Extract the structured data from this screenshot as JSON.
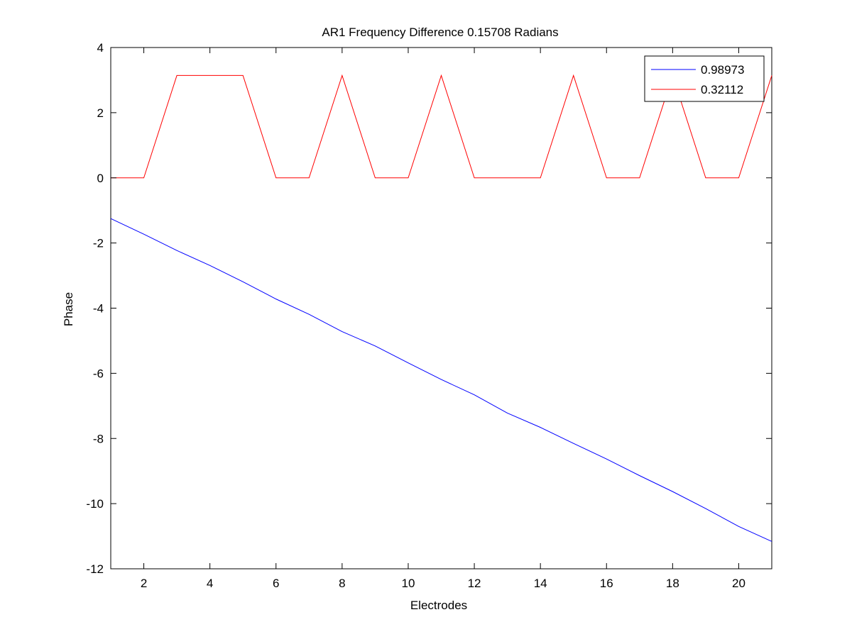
{
  "chart_data": {
    "type": "line",
    "title": "AR1 Frequency Difference 0.15708 Radians",
    "xlabel": "Electrodes",
    "ylabel": "Phase",
    "xlim": [
      1,
      21
    ],
    "ylim": [
      -12,
      4
    ],
    "xticks": [
      2,
      4,
      6,
      8,
      10,
      12,
      14,
      16,
      18,
      20
    ],
    "yticks": [
      -12,
      -10,
      -8,
      -6,
      -4,
      -2,
      0,
      2,
      4
    ],
    "grid": false,
    "legend_position": "top-right",
    "x": [
      1,
      2,
      3,
      4,
      5,
      6,
      7,
      8,
      9,
      10,
      11,
      12,
      13,
      14,
      15,
      16,
      17,
      18,
      19,
      20,
      21
    ],
    "series": [
      {
        "name": "0.98973",
        "color": "#0000ff",
        "values": [
          -1.25,
          -1.73,
          -2.23,
          -2.69,
          -3.19,
          -3.72,
          -4.19,
          -4.72,
          -5.16,
          -5.68,
          -6.19,
          -6.66,
          -7.22,
          -7.66,
          -8.15,
          -8.63,
          -9.14,
          -9.63,
          -10.15,
          -10.7,
          -11.16
        ]
      },
      {
        "name": "0.32112",
        "color": "#ff0000",
        "values": [
          0,
          0,
          3.1416,
          3.1416,
          3.1416,
          0,
          0,
          3.1416,
          0,
          0,
          3.1416,
          0,
          0,
          0,
          3.1416,
          0,
          0,
          3.1416,
          0,
          0,
          3.1416
        ]
      }
    ]
  }
}
